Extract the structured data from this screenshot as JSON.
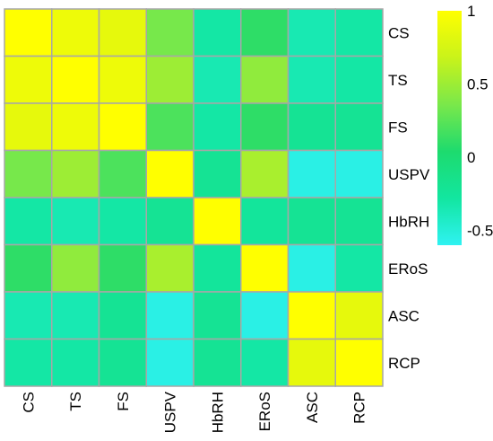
{
  "chart_data": {
    "type": "heatmap",
    "title": "",
    "xlabel": "",
    "ylabel": "",
    "row_labels": [
      "CS",
      "TS",
      "FS",
      "USPV",
      "HbRH",
      "ERoS",
      "ASC",
      "RCP"
    ],
    "col_labels": [
      "CS",
      "TS",
      "FS",
      "USPV",
      "HbRH",
      "ERoS",
      "ASC",
      "RCP"
    ],
    "values": [
      [
        1.0,
        0.9,
        0.85,
        0.35,
        -0.3,
        0.1,
        -0.35,
        -0.3
      ],
      [
        0.9,
        1.0,
        0.9,
        0.5,
        -0.35,
        0.45,
        -0.35,
        -0.3
      ],
      [
        0.85,
        0.9,
        1.0,
        0.2,
        -0.3,
        0.1,
        -0.2,
        -0.2
      ],
      [
        0.35,
        0.5,
        0.2,
        1.0,
        -0.2,
        0.55,
        -0.55,
        -0.55
      ],
      [
        -0.3,
        -0.35,
        -0.3,
        -0.2,
        1.0,
        -0.25,
        -0.2,
        -0.2
      ],
      [
        0.1,
        0.45,
        0.1,
        0.55,
        -0.25,
        1.0,
        -0.55,
        -0.3
      ],
      [
        -0.35,
        -0.35,
        -0.2,
        -0.55,
        -0.2,
        -0.55,
        1.0,
        0.85
      ],
      [
        -0.3,
        -0.3,
        -0.2,
        -0.55,
        -0.2,
        -0.3,
        0.85,
        1.0
      ]
    ],
    "colorbar": {
      "min": -0.6,
      "max": 1.0,
      "ticks": [
        1,
        0.5,
        0,
        -0.5
      ],
      "tick_labels": [
        "1",
        "0.5",
        "0",
        "-0.5"
      ],
      "colors": [
        "#2ff2f2",
        "#12e6a0",
        "#1ddb6e",
        "#7ae84a",
        "#c9f31a",
        "#ffff00"
      ]
    },
    "grid": true,
    "legend": "right"
  }
}
